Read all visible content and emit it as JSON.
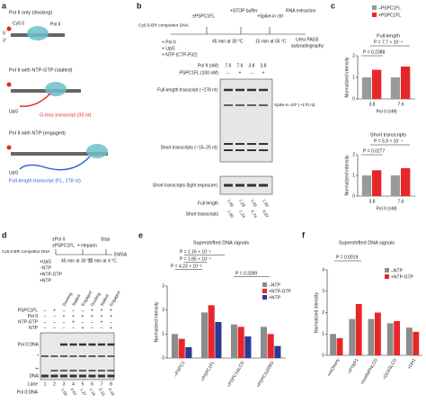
{
  "a": {
    "label": "a",
    "docking": "Pol II only (docking)",
    "cy": "Cy5.5",
    "five": "5′",
    "three": "3′",
    "pol": "Pol II",
    "stalled": "Pol II with NTP-GTP (stalled)",
    "upg1": "UpG",
    "gless": "G-less transcript (33 nt)",
    "engaged": "Pol II with NTP (engaged)",
    "upg2": "UpG",
    "fl": "Full-length transcript (FL, 278 nt)"
  },
  "b": {
    "label": "b",
    "dna": "Cy5.5-BR competitor DNA",
    "pspc": "±PSPC1FL",
    "stop": "+STOP buffer",
    "spike": "+Spike-in ctrl",
    "rna": "RNA extraction",
    "adds": [
      "+ Pol II",
      "+ UpG",
      "+ NTP (CTP-P32)"
    ],
    "t1": "45 min at 30 °C",
    "t2": "15 min at 55 °C",
    "readout": [
      "Urea PAGE",
      "autoradiography"
    ],
    "polii_label": "Pol II (nM)",
    "polii": [
      "7.6",
      "7.6",
      "3.8",
      "3.8"
    ],
    "pspc_label": "PSPC1FL (100 nM)",
    "pspc_signs": [
      "–",
      "+",
      "–",
      "+"
    ],
    "fl_band": "Full-length transcript (~278 nt)",
    "spike_band": "Spike-in ctrl* (~170 nt)",
    "short_band": "Short transcripts (~15–25 nt)",
    "short_light": "Short transcripts (light exposure)",
    "quant": [
      {
        "name": "Full length",
        "values": [
          "1.00",
          "1.29",
          "1.00",
          "1.50"
        ]
      },
      {
        "name": "Short transcripts",
        "values": [
          "1.00",
          "1.24",
          "0.74",
          "0.87"
        ]
      }
    ]
  },
  "c": {
    "label": "c",
    "legend": [
      "–PSPC1FL",
      "+PSPC1FL"
    ],
    "colors": [
      "#9a9a9a",
      "#e8262a"
    ],
    "charts": [
      {
        "title": "Full-length",
        "ylabel": "Normalized intensity",
        "xlabel": "Pol II (nM)",
        "categories": [
          "3.8",
          "7.6"
        ],
        "ylim": [
          0,
          2
        ],
        "yticks": [
          0,
          1,
          2
        ],
        "pvalues": [
          "P = 0.2388",
          "P = 7.7 × 10⁻⁴"
        ],
        "series": [
          {
            "values": [
              1,
              1
            ]
          },
          {
            "values": [
              1.35,
              1.5
            ]
          }
        ]
      },
      {
        "title": "Short transcripts",
        "ylabel": "Normalized intensity",
        "xlabel": "Pol II (nM)",
        "categories": [
          "3.8",
          "7.6"
        ],
        "ylim": [
          0,
          2
        ],
        "yticks": [
          0,
          1,
          2
        ],
        "pvalues": [
          "P = 0.0277",
          "P = 5.9 × 10⁻⁴"
        ],
        "series": [
          {
            "values": [
              1,
              1
            ]
          },
          {
            "values": [
              1.25,
              1.35
            ]
          }
        ]
      }
    ]
  },
  "d": {
    "label": "d",
    "dna": "Cy5.5-BR competitor DNA",
    "pol": "±Pol II",
    "pspc": "±PSPC1FL",
    "heparin": "+ Heparin",
    "stop": "Stop",
    "conds": [
      "+UpG",
      "−NTP",
      "+NTP-GTP",
      "+NTP"
    ],
    "t1": "45 min at 30 °C",
    "t2": "20 min at 4 °C",
    "readout": "EMSA",
    "lanes_hdr": [
      "Docking",
      "Stalled",
      "Engaged",
      "Docking",
      "Stalled",
      "Engaged"
    ],
    "rows": [
      {
        "name": "PSPC1FL",
        "signs": [
          "–",
          "+",
          "–",
          "–",
          "–",
          "+",
          "+",
          "+"
        ]
      },
      {
        "name": "Pol II",
        "signs": [
          "–",
          "–",
          "+",
          "+",
          "+",
          "+",
          "+",
          "+"
        ]
      },
      {
        "name": "NTP-GTP",
        "signs": [
          "–",
          "–",
          "–",
          "+",
          "–",
          "–",
          "+",
          "–"
        ]
      },
      {
        "name": "NTP",
        "signs": [
          "–",
          "–",
          "–",
          "–",
          "+",
          "–",
          "–",
          "+"
        ]
      }
    ],
    "complex": "Pol II:DNA",
    "star": "*",
    "star2": "**",
    "free": "DNA",
    "lane_label": "Lane",
    "lanes": [
      "1",
      "2",
      "3",
      "4",
      "5",
      "6",
      "7",
      "8"
    ],
    "quant_label": "Pol II:DNA",
    "quant": [
      "1.00",
      "0.67",
      "1.27",
      "1.16",
      "0.15",
      "0.44"
    ]
  },
  "e": {
    "label": "e",
    "title": "Supershifted DNA signals",
    "ylabel": "Normalized intensity",
    "pvalues": [
      "P = 1.16 × 10⁻³",
      "P = 1.85 × 10⁻⁴",
      "P = 4.23 × 10⁻³",
      "P = 0.3289"
    ],
    "categories": [
      "–PSPC1",
      "+PSPC1FL",
      "+PSPC1ΔLCD",
      "+PSPC1ΔRBD"
    ],
    "ylim": [
      0,
      3
    ],
    "yticks": [
      0,
      1,
      2,
      3
    ],
    "series": [
      {
        "name": "–NTP",
        "color": "#8c8c8c",
        "values": [
          1,
          1.9,
          1.4,
          1.3
        ]
      },
      {
        "name": "+NTP-GTP",
        "color": "#e8262a",
        "values": [
          0.8,
          2.2,
          1.3,
          1.0
        ]
      },
      {
        "name": "+NTP",
        "color": "#2b3a92",
        "values": [
          0.45,
          1.5,
          0.9,
          0.5
        ]
      }
    ]
  },
  "f": {
    "label": "f",
    "title": "Supershifted DNA signals",
    "ylabel": "Normalized intensity",
    "pvalues": [
      "P = 0.0019"
    ],
    "categories": [
      "+mCherry",
      "+PTBP1",
      "+hnRNPHLCD",
      "+DDX5LCD",
      "+DH1"
    ],
    "ylim": [
      0,
      4
    ],
    "yticks": [
      0,
      1,
      2,
      3,
      4
    ],
    "series": [
      {
        "name": "–NTP",
        "color": "#8c8c8c",
        "values": [
          1,
          1.7,
          1.7,
          1.5,
          1.3
        ]
      },
      {
        "name": "+NTP-GTP",
        "color": "#e8262a",
        "values": [
          0.8,
          2.4,
          2.0,
          1.6,
          1.1
        ]
      }
    ]
  }
}
